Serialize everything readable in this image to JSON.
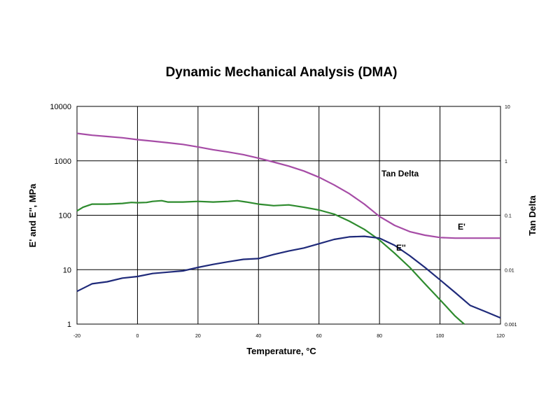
{
  "chart_data": {
    "type": "line",
    "title": "Dynamic Mechanical Analysis (DMA)",
    "xlabel": "Temperature, °C",
    "ylabel_left": "E' and E'', MPa",
    "ylabel_right": "Tan Delta",
    "xlim": [
      -20,
      120
    ],
    "ylim_left": [
      1,
      10000
    ],
    "ylim_right": [
      0.001,
      10
    ],
    "yscale": "log",
    "grid": true,
    "x_ticks": [
      "-20",
      "0",
      "20",
      "40",
      "60",
      "80",
      "100",
      "120"
    ],
    "y_left_ticks": [
      "1",
      "10",
      "100",
      "1000",
      "10000"
    ],
    "y_right_ticks": [
      "0.001",
      "0.01",
      "0.1",
      "1",
      "10"
    ],
    "colors": {
      "E_prime": "#a64ca6",
      "E_double_prime": "#2e8b2e",
      "tan_delta": "#1f2a7a"
    },
    "series": [
      {
        "name": "E'",
        "label": "E'",
        "axis": "left",
        "x": [
          -20,
          -15,
          -10,
          -5,
          0,
          5,
          10,
          15,
          20,
          25,
          30,
          35,
          40,
          45,
          50,
          55,
          60,
          65,
          70,
          75,
          80,
          85,
          90,
          95,
          100,
          105,
          110,
          115,
          120
        ],
        "values": [
          3200,
          2950,
          2800,
          2650,
          2450,
          2300,
          2150,
          2000,
          1800,
          1600,
          1450,
          1300,
          1120,
          950,
          800,
          650,
          500,
          360,
          250,
          160,
          95,
          65,
          50,
          43,
          39,
          38,
          38,
          38,
          38
        ]
      },
      {
        "name": "E''",
        "label": "E''",
        "axis": "left",
        "x": [
          -20,
          -18,
          -15,
          -10,
          -5,
          -2,
          0,
          3,
          5,
          8,
          10,
          15,
          20,
          25,
          30,
          33,
          36,
          40,
          45,
          50,
          55,
          60,
          65,
          70,
          75,
          80,
          85,
          90,
          95,
          100,
          105,
          108
        ],
        "values": [
          120,
          140,
          160,
          160,
          165,
          172,
          170,
          172,
          180,
          185,
          175,
          175,
          180,
          175,
          180,
          185,
          175,
          160,
          150,
          155,
          140,
          125,
          105,
          78,
          55,
          35,
          20,
          11,
          5.5,
          2.8,
          1.4,
          1.0
        ]
      },
      {
        "name": "Tan Delta",
        "label": "Tan Delta",
        "axis": "right",
        "x": [
          -20,
          -15,
          -10,
          -5,
          0,
          5,
          10,
          15,
          20,
          25,
          30,
          35,
          40,
          45,
          50,
          55,
          60,
          65,
          70,
          75,
          80,
          85,
          90,
          95,
          100,
          105,
          110,
          115,
          120
        ],
        "values": [
          0.004,
          0.0055,
          0.006,
          0.007,
          0.0075,
          0.0085,
          0.009,
          0.0095,
          0.011,
          0.0125,
          0.014,
          0.0155,
          0.016,
          0.019,
          0.022,
          0.025,
          0.03,
          0.036,
          0.04,
          0.041,
          0.038,
          0.028,
          0.018,
          0.011,
          0.0065,
          0.0038,
          0.0022,
          0.0017,
          0.0013
        ]
      }
    ]
  }
}
